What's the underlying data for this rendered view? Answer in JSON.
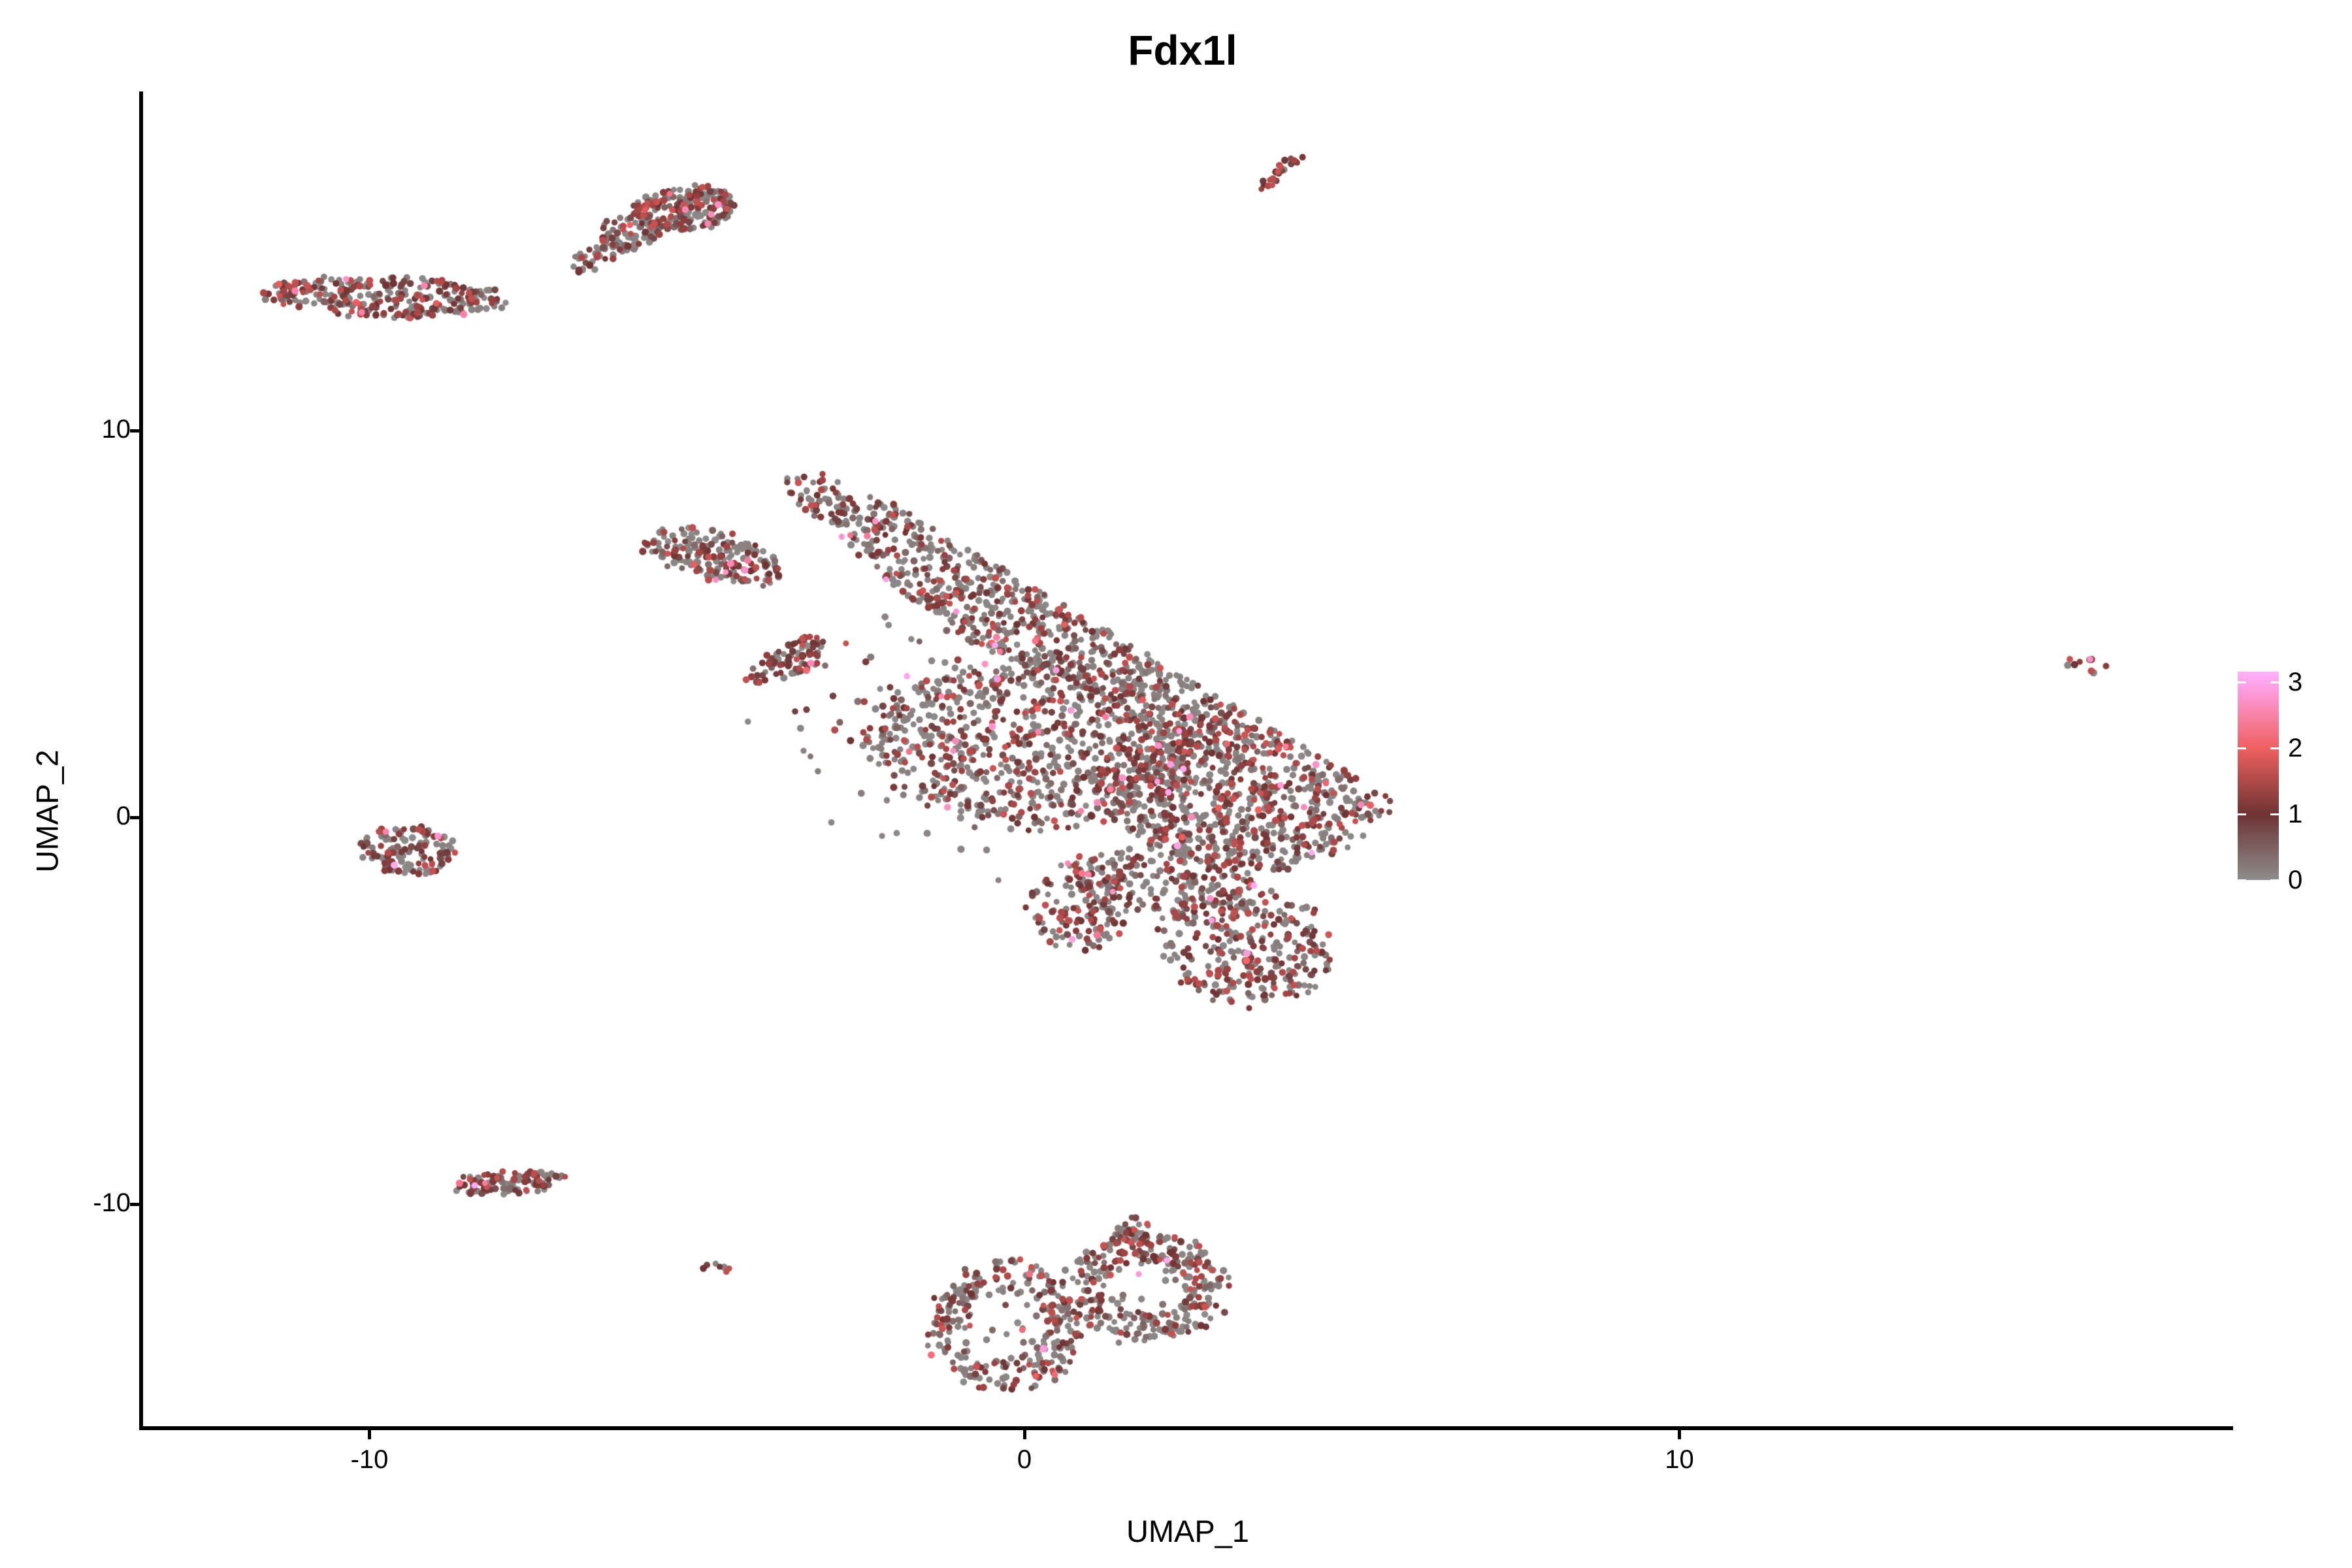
{
  "title": "Fdx1l",
  "chart_data": {
    "type": "scatter",
    "title": "Fdx1l",
    "subtitle": "",
    "xlabel": "UMAP_1",
    "ylabel": "UMAP_2",
    "xlim": [
      -13.4,
      18.5
    ],
    "ylim": [
      -15.7,
      18.8
    ],
    "x_ticks": [
      -10,
      0,
      10
    ],
    "y_ticks": [
      10,
      0,
      -10
    ],
    "grid": false,
    "legend": {
      "position": "right",
      "ticks": [
        3,
        2,
        1,
        0
      ],
      "vmin": 0,
      "vmax": 3.16,
      "stops": [
        {
          "v": 0,
          "color": "#8E8C8C"
        },
        {
          "v": 1,
          "color": "#6E3333"
        },
        {
          "v": 2,
          "color": "#F06060"
        },
        {
          "v": 3,
          "color": "#FFA5F0"
        },
        {
          "v": 3.2,
          "color": "#FFB3F8"
        }
      ]
    },
    "point_style": {
      "radius_px": 5,
      "low_color": "#8F8F8F",
      "order_by_value": true
    },
    "clusters": [
      {
        "name": "top-streak",
        "type": "line",
        "x1": 3.55,
        "y1": 16.25,
        "x2": 4.25,
        "y2": 17.15,
        "width": 0.14,
        "n": 22,
        "red_frac": 0.8
      },
      {
        "name": "topcenter-main",
        "type": "blob",
        "cx": -5.2,
        "cy": 15.75,
        "rx": 0.78,
        "ry": 0.55,
        "rot": 12,
        "n": 210,
        "red_frac": 0.45
      },
      {
        "name": "topcenter-left",
        "type": "blob",
        "cx": -6.05,
        "cy": 15.1,
        "rx": 0.5,
        "ry": 0.45,
        "rot": 30,
        "n": 80,
        "red_frac": 0.35
      },
      {
        "name": "topcenter-tail",
        "type": "blob",
        "cx": -6.6,
        "cy": 14.4,
        "rx": 0.42,
        "ry": 0.26,
        "rot": 48,
        "n": 30,
        "red_frac": 0.35
      },
      {
        "name": "left-elongated",
        "type": "blob",
        "cx": -9.75,
        "cy": 13.45,
        "rx": 1.8,
        "ry": 0.52,
        "rot": -4,
        "n": 290,
        "red_frac": 0.45
      },
      {
        "name": "left-lone-dot",
        "type": "blob",
        "cx": -8.08,
        "cy": 13.38,
        "rx": 0.1,
        "ry": 0.08,
        "rot": 0,
        "n": 2,
        "red_frac": 1.0
      },
      {
        "name": "main-top-spike",
        "type": "blob",
        "cx": -3.15,
        "cy": 8.35,
        "rx": 0.4,
        "ry": 0.8,
        "rot": 25,
        "n": 60,
        "red_frac": 0.45
      },
      {
        "name": "main-left-arm",
        "type": "blob",
        "cx": -4.75,
        "cy": 6.75,
        "rx": 1.15,
        "ry": 0.6,
        "rot": -28,
        "n": 190,
        "red_frac": 0.42
      },
      {
        "name": "main-arm-streak",
        "type": "blob",
        "cx": -3.6,
        "cy": 4.05,
        "rx": 0.8,
        "ry": 0.38,
        "rot": 42,
        "n": 85,
        "red_frac": 0.7
      },
      {
        "name": "main-band-top",
        "type": "blob",
        "cx": 0.2,
        "cy": 5.3,
        "rx": 3.9,
        "ry": 1.15,
        "rot": -44,
        "n": 650,
        "red_frac": 0.38,
        "clip_line": true
      },
      {
        "name": "main-mid",
        "type": "blob",
        "cx": 0.1,
        "cy": 1.9,
        "rx": 2.6,
        "ry": 2.0,
        "rot": -20,
        "n": 780,
        "red_frac": 0.42,
        "clip_line": true
      },
      {
        "name": "main-right",
        "type": "blob",
        "cx": 3.35,
        "cy": 0.7,
        "rx": 2.1,
        "ry": 1.95,
        "rot": -28,
        "n": 760,
        "red_frac": 0.45,
        "clip_line": true
      },
      {
        "name": "main-lobe-bottom-right",
        "type": "blob",
        "cx": 3.35,
        "cy": -3.3,
        "rx": 1.25,
        "ry": 1.55,
        "rot": 15,
        "n": 290,
        "red_frac": 0.5
      },
      {
        "name": "main-lobe-bottom-left",
        "type": "blob",
        "cx": 0.8,
        "cy": -2.4,
        "rx": 0.75,
        "ry": 1.1,
        "rot": 0,
        "n": 120,
        "red_frac": 0.5
      },
      {
        "name": "main-bridge",
        "type": "blob",
        "cx": 2.1,
        "cy": -1.7,
        "rx": 1.5,
        "ry": 0.85,
        "rot": -12,
        "n": 190,
        "red_frac": 0.45
      },
      {
        "name": "main-sparse-halo",
        "type": "blob",
        "cx": 0.4,
        "cy": 2.2,
        "rx": 4.4,
        "ry": 4.1,
        "rot": -30,
        "n": 110,
        "red_frac": 0.33,
        "clip_line": true
      },
      {
        "name": "left-middle-blob",
        "type": "blob",
        "cx": -9.4,
        "cy": -0.85,
        "rx": 0.75,
        "ry": 0.62,
        "rot": -8,
        "n": 125,
        "red_frac": 0.5
      },
      {
        "name": "far-right-blob",
        "type": "blob",
        "cx": 16.2,
        "cy": 3.95,
        "rx": 0.36,
        "ry": 0.22,
        "rot": -28,
        "n": 11,
        "red_frac": 0.6
      },
      {
        "name": "bottomleft-elongated",
        "type": "blob",
        "cx": -7.85,
        "cy": -9.45,
        "rx": 0.88,
        "ry": 0.3,
        "rot": 6,
        "n": 105,
        "red_frac": 0.5
      },
      {
        "name": "tiny-blob",
        "type": "blob",
        "cx": -4.72,
        "cy": -11.62,
        "rx": 0.22,
        "ry": 0.2,
        "rot": 0,
        "n": 7,
        "red_frac": 0.8
      },
      {
        "name": "ring-left",
        "type": "ring",
        "cx": -0.3,
        "cy": -13.15,
        "rx": 1.15,
        "ry": 1.62,
        "rot": 0,
        "inner": 0.55,
        "n": 270,
        "red_frac": 0.4
      },
      {
        "name": "ring-left-interior",
        "type": "blob",
        "cx": -0.3,
        "cy": -13.1,
        "rx": 0.6,
        "ry": 0.9,
        "rot": 0,
        "n": 18,
        "red_frac": 0.25
      },
      {
        "name": "ring-right",
        "type": "ring",
        "cx": 1.87,
        "cy": -12.15,
        "rx": 1.22,
        "ry": 1.38,
        "rot": 0,
        "inner": 0.5,
        "n": 280,
        "red_frac": 0.4
      },
      {
        "name": "ring-right-interior",
        "type": "blob",
        "cx": 1.9,
        "cy": -12.1,
        "rx": 0.6,
        "ry": 0.7,
        "rot": 0,
        "n": 15,
        "red_frac": 0.25
      },
      {
        "name": "ring-right-top-tip",
        "type": "blob",
        "cx": 1.7,
        "cy": -10.8,
        "rx": 0.35,
        "ry": 0.45,
        "rot": 20,
        "n": 30,
        "red_frac": 0.45
      }
    ]
  }
}
